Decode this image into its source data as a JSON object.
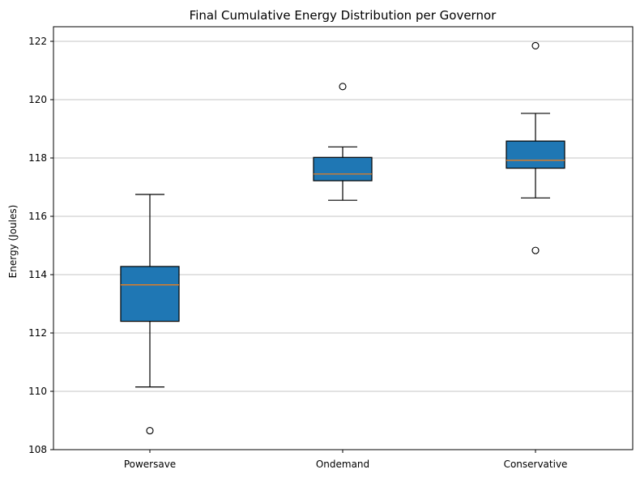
{
  "chart_data": {
    "type": "boxplot",
    "title": "Final Cumulative Energy Distribution per Governor",
    "xlabel": "",
    "ylabel": "Energy (Joules)",
    "ylim": [
      108,
      122.5
    ],
    "yticks": [
      108,
      110,
      112,
      114,
      116,
      118,
      120,
      122
    ],
    "grid": "y-axis",
    "categories": [
      "Powersave",
      "Ondemand",
      "Conservative"
    ],
    "boxes": [
      {
        "category": "Powersave",
        "whisker_low": 110.15,
        "q1": 112.4,
        "median": 113.65,
        "q3": 114.28,
        "whisker_high": 116.75,
        "outliers": [
          108.65
        ]
      },
      {
        "category": "Ondemand",
        "whisker_low": 116.55,
        "q1": 117.22,
        "median": 117.45,
        "q3": 118.02,
        "whisker_high": 118.38,
        "outliers": [
          120.45
        ]
      },
      {
        "category": "Conservative",
        "whisker_low": 116.63,
        "q1": 117.65,
        "median": 117.92,
        "q3": 118.58,
        "whisker_high": 119.53,
        "outliers": [
          114.83,
          121.85
        ]
      }
    ],
    "colors": {
      "box_fill": "#1f77b4",
      "median": "#ff7f0e",
      "grid": "#b0b0b0",
      "axis": "#000000"
    }
  }
}
